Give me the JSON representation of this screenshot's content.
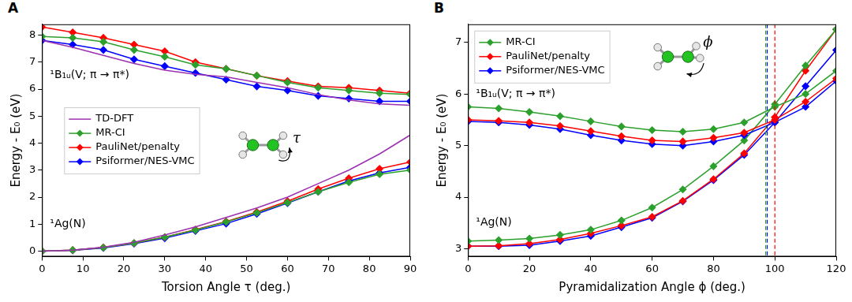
{
  "chart_data": [
    {
      "panel": "A",
      "type": "line",
      "x_label": "Torsion Angle τ (deg.)",
      "y_label": "Energy - E₀ (eV)",
      "xlim": [
        0,
        90
      ],
      "xticks": [
        0,
        10,
        20,
        30,
        40,
        50,
        60,
        70,
        80,
        90
      ],
      "ylim": [
        -0.2,
        8.4
      ],
      "yticks": [
        0,
        1,
        2,
        3,
        4,
        5,
        6,
        7,
        8
      ],
      "grid": false,
      "legend": "center left",
      "inset_label": "τ",
      "series": [
        {
          "name": "TD-DFT",
          "state": "¹B₁ᵤ(V; π → π*)",
          "color": "#9b30b0",
          "marker": "none",
          "x": [
            0,
            7.5,
            15,
            22.5,
            30,
            37.5,
            45,
            52.5,
            60,
            67.5,
            75,
            82.5,
            90
          ],
          "values": [
            7.8,
            7.55,
            7.25,
            6.95,
            6.7,
            6.55,
            6.45,
            6.25,
            6.05,
            5.8,
            5.6,
            5.45,
            5.4
          ]
        },
        {
          "name": "MR-CI",
          "state": "¹B₁ᵤ(V; π → π*)",
          "color": "#2ca02c",
          "marker": "diamond",
          "x": [
            0,
            7.5,
            15,
            22.5,
            30,
            37.5,
            45,
            52.5,
            60,
            67.5,
            75,
            82.5,
            90
          ],
          "values": [
            7.95,
            7.9,
            7.75,
            7.45,
            7.2,
            6.9,
            6.75,
            6.5,
            6.25,
            6.05,
            5.95,
            5.85,
            5.8
          ]
        },
        {
          "name": "PauliNet/penalty",
          "state": "¹B₁ᵤ(V; π → π*)",
          "color": "#ff0000",
          "marker": "diamond",
          "x": [
            0,
            7.5,
            15,
            22.5,
            30,
            37.5,
            45,
            52.5,
            60,
            67.5,
            75,
            82.5,
            90
          ],
          "values": [
            8.3,
            8.1,
            7.9,
            7.65,
            7.4,
            7.0,
            6.75,
            6.5,
            6.3,
            6.1,
            6.05,
            5.95,
            5.85
          ]
        },
        {
          "name": "Psiformer/NES-VMC",
          "state": "¹B₁ᵤ(V; π → π*)",
          "color": "#0000ff",
          "marker": "diamond",
          "x": [
            0,
            7.5,
            15,
            22.5,
            30,
            37.5,
            45,
            52.5,
            60,
            67.5,
            75,
            82.5,
            90
          ],
          "values": [
            7.8,
            7.65,
            7.45,
            7.1,
            6.85,
            6.6,
            6.35,
            6.1,
            5.95,
            5.75,
            5.65,
            5.55,
            5.55
          ]
        },
        {
          "name": "TD-DFT",
          "state": "¹Ag(N)",
          "color": "#9b30b0",
          "marker": "none",
          "x": [
            0,
            7.5,
            15,
            22.5,
            30,
            37.5,
            45,
            52.5,
            60,
            67.5,
            75,
            82.5,
            90
          ],
          "values": [
            0,
            0.04,
            0.15,
            0.33,
            0.6,
            0.9,
            1.25,
            1.6,
            2.0,
            2.5,
            3.0,
            3.6,
            4.3
          ]
        },
        {
          "name": "MR-CI",
          "state": "¹Ag(N)",
          "color": "#2ca02c",
          "marker": "diamond",
          "x": [
            0,
            7.5,
            15,
            22.5,
            30,
            37.5,
            45,
            52.5,
            60,
            67.5,
            75,
            82.5,
            90
          ],
          "values": [
            0,
            0.04,
            0.13,
            0.3,
            0.52,
            0.78,
            1.08,
            1.42,
            1.8,
            2.2,
            2.55,
            2.85,
            3.0
          ]
        },
        {
          "name": "PauliNet/penalty",
          "state": "¹Ag(N)",
          "color": "#ff0000",
          "marker": "diamond",
          "x": [
            0,
            7.5,
            15,
            22.5,
            30,
            37.5,
            45,
            52.5,
            60,
            67.5,
            75,
            82.5,
            90
          ],
          "values": [
            0,
            0.04,
            0.14,
            0.3,
            0.52,
            0.8,
            1.1,
            1.45,
            1.85,
            2.3,
            2.7,
            3.05,
            3.3
          ]
        },
        {
          "name": "Psiformer/NES-VMC",
          "state": "¹Ag(N)",
          "color": "#0000ff",
          "marker": "diamond",
          "x": [
            0,
            7.5,
            15,
            22.5,
            30,
            37.5,
            45,
            52.5,
            60,
            67.5,
            75,
            82.5,
            90
          ],
          "values": [
            0,
            0.03,
            0.12,
            0.28,
            0.48,
            0.75,
            1.02,
            1.38,
            1.78,
            2.2,
            2.6,
            2.9,
            3.1
          ]
        }
      ]
    },
    {
      "panel": "B",
      "type": "line",
      "x_label": "Pyramidalization Angle ϕ (deg.)",
      "y_label": "Energy - E₀ (eV)",
      "xlim": [
        0,
        120
      ],
      "xticks": [
        0,
        20,
        40,
        60,
        80,
        100,
        120
      ],
      "ylim": [
        2.85,
        7.35
      ],
      "yticks": [
        3,
        4,
        5,
        6,
        7
      ],
      "grid": false,
      "legend": "upper left",
      "inset_label": "ϕ",
      "crossings": [
        {
          "name": "MR-CI",
          "x": 97
        },
        {
          "name": "Psiformer/NES-VMC",
          "x": 97.5
        },
        {
          "name": "PauliNet/penalty",
          "x": 100
        }
      ],
      "series": [
        {
          "name": "MR-CI",
          "state": "¹B₁ᵤ(V; π → π*)",
          "color": "#2ca02c",
          "marker": "diamond",
          "x": [
            0,
            10,
            20,
            30,
            40,
            50,
            60,
            70,
            80,
            90,
            100,
            110,
            120
          ],
          "values": [
            5.75,
            5.72,
            5.65,
            5.57,
            5.47,
            5.37,
            5.3,
            5.27,
            5.32,
            5.45,
            5.75,
            6.0,
            6.45
          ]
        },
        {
          "name": "PauliNet/penalty",
          "state": "¹B₁ᵤ(V; π → π*)",
          "color": "#ff0000",
          "marker": "diamond",
          "x": [
            0,
            10,
            20,
            30,
            40,
            50,
            60,
            70,
            80,
            90,
            100,
            110,
            120
          ],
          "values": [
            5.5,
            5.48,
            5.45,
            5.38,
            5.28,
            5.18,
            5.1,
            5.08,
            5.15,
            5.25,
            5.5,
            5.85,
            6.3
          ]
        },
        {
          "name": "Psiformer/NES-VMC",
          "state": "¹B₁ᵤ(V; π → π*)",
          "color": "#0000ff",
          "marker": "diamond",
          "x": [
            0,
            10,
            20,
            30,
            40,
            50,
            60,
            70,
            80,
            90,
            100,
            110,
            120
          ],
          "values": [
            5.47,
            5.45,
            5.4,
            5.32,
            5.2,
            5.1,
            5.03,
            5.0,
            5.08,
            5.2,
            5.45,
            5.75,
            6.25
          ]
        },
        {
          "name": "MR-CI",
          "state": "¹Ag(N)",
          "color": "#2ca02c",
          "marker": "diamond",
          "x": [
            0,
            10,
            20,
            30,
            40,
            50,
            60,
            70,
            80,
            90,
            100,
            110,
            120
          ],
          "values": [
            3.15,
            3.17,
            3.2,
            3.27,
            3.37,
            3.55,
            3.8,
            4.15,
            4.6,
            5.1,
            5.8,
            6.55,
            7.25
          ]
        },
        {
          "name": "PauliNet/penalty",
          "state": "¹Ag(N)",
          "color": "#ff0000",
          "marker": "diamond",
          "x": [
            0,
            10,
            20,
            30,
            40,
            50,
            60,
            70,
            80,
            90,
            100,
            110,
            120
          ],
          "values": [
            3.05,
            3.06,
            3.1,
            3.18,
            3.3,
            3.45,
            3.62,
            3.93,
            4.35,
            4.85,
            5.55,
            6.45,
            7.25
          ]
        },
        {
          "name": "Psiformer/NES-VMC",
          "state": "¹Ag(N)",
          "color": "#0000ff",
          "marker": "diamond",
          "x": [
            0,
            10,
            20,
            30,
            40,
            50,
            60,
            70,
            80,
            90,
            100,
            110,
            120
          ],
          "values": [
            3.05,
            3.05,
            3.07,
            3.15,
            3.25,
            3.42,
            3.6,
            3.92,
            4.33,
            4.82,
            5.45,
            6.15,
            6.85
          ]
        }
      ]
    }
  ]
}
